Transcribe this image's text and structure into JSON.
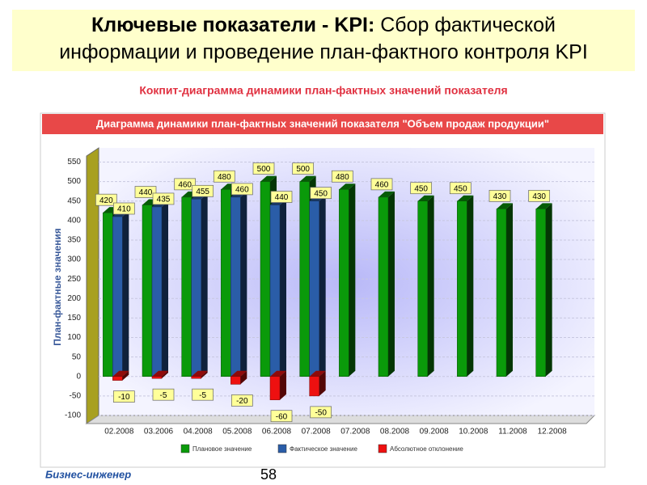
{
  "header": {
    "title_bold": "Ключевые показатели - KPI:",
    "title_rest": " Сбор фактической информации и проведение план-фактного контроля KPI",
    "subtitle": "Кокпит-диаграмма динамики план-фактных значений показателя"
  },
  "chart_data": {
    "type": "bar3d",
    "title": "Диаграмма динамики план-фактных значений показателя \"Объем продаж продукции\"",
    "y_label": "План-фактные значения",
    "categories": [
      "02.2008",
      "03.2006",
      "04.2008",
      "05.2008",
      "06.2008",
      "07.2008",
      "07.2008",
      "08.2008",
      "09.2008",
      "10.2008",
      "11.2008",
      "12.2008"
    ],
    "series": [
      {
        "name": "Плановое значение",
        "color": "#0a9a0a",
        "values": [
          420,
          440,
          460,
          480,
          500,
          500,
          480,
          460,
          450,
          450,
          430,
          430
        ]
      },
      {
        "name": "Фактическое значение",
        "color": "#2a5da8",
        "values": [
          410,
          435,
          455,
          460,
          440,
          450,
          null,
          null,
          null,
          null,
          null,
          null
        ]
      },
      {
        "name": "Абсолютное отклонение",
        "color": "#ee1010",
        "values": [
          -10,
          -5,
          -5,
          -20,
          -60,
          -50,
          null,
          null,
          null,
          null,
          null,
          null
        ]
      }
    ],
    "ylim": [
      -100,
      580
    ],
    "yticks": [
      -100,
      -50,
      0,
      50,
      100,
      150,
      200,
      250,
      300,
      350,
      400,
      450,
      500,
      550
    ],
    "grid": true
  },
  "footer": {
    "brand": "Бизнес-инженер",
    "page": "58"
  }
}
